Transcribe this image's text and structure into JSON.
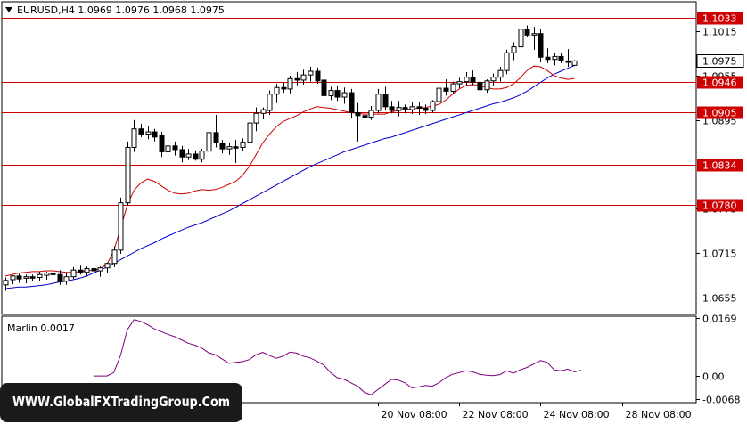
{
  "header": {
    "symbol_line": "EURUSD,H4  1.0969 1.0976 1.0968 1.0975",
    "dropdown_icon": "triangle-down-icon"
  },
  "watermark": "WWW.GlobalFXTradingGroup.Com",
  "colors": {
    "bull": "#ffffff",
    "bear": "#000000",
    "ma_fast": "#cc0000",
    "ma_slow": "#0000cc",
    "level": "#cc0000",
    "oscillator": "#800080",
    "axis": "#000000",
    "price_tag_bg": "#ffffff"
  },
  "chart_data": [
    {
      "type": "candlestick",
      "title": "EURUSD,H4",
      "ohlc_readout": {
        "open": "1.0969",
        "high": "1.0976",
        "low": "1.0968",
        "close": "1.0975"
      },
      "ylim": [
        1.0632,
        1.1055
      ],
      "y_ticks": [
        "1.1015",
        "1.0955",
        "1.0895",
        "1.0775",
        "1.0715",
        "1.0655"
      ],
      "x_ticks": [
        {
          "label": "20 Nov 08:00",
          "index": 55
        },
        {
          "label": "22 Nov 08:00",
          "index": 67
        },
        {
          "label": "24 Nov 08:00",
          "index": 79
        },
        {
          "label": "28 Nov 08:00",
          "index": 91
        }
      ],
      "current_price": "1.0975",
      "levels": [
        {
          "label": "1.1033",
          "value": 1.1033
        },
        {
          "label": "1.0946",
          "value": 1.0946
        },
        {
          "label": "1.0905",
          "value": 1.0905
        },
        {
          "label": "1.0834",
          "value": 1.0834
        },
        {
          "label": "1.0780",
          "value": 1.078
        }
      ],
      "candles": [
        [
          1.0672,
          1.0682,
          1.0664,
          1.0678
        ],
        [
          1.0679,
          1.0685,
          1.0673,
          1.0684
        ],
        [
          1.0684,
          1.0687,
          1.0675,
          1.068
        ],
        [
          1.0681,
          1.0686,
          1.0674,
          1.0683
        ],
        [
          1.0683,
          1.0686,
          1.0677,
          1.0681
        ],
        [
          1.0682,
          1.069,
          1.0677,
          1.0686
        ],
        [
          1.0685,
          1.069,
          1.0679,
          1.0688
        ],
        [
          1.0687,
          1.0692,
          1.0682,
          1.0686
        ],
        [
          1.0686,
          1.0692,
          1.0672,
          1.0676
        ],
        [
          1.0677,
          1.0689,
          1.0672,
          1.0683
        ],
        [
          1.0683,
          1.0696,
          1.068,
          1.0692
        ],
        [
          1.0692,
          1.0698,
          1.0686,
          1.0689
        ],
        [
          1.0689,
          1.0697,
          1.0683,
          1.0694
        ],
        [
          1.0694,
          1.07,
          1.0688,
          1.0691
        ],
        [
          1.0691,
          1.0697,
          1.0683,
          1.0695
        ],
        [
          1.0695,
          1.0702,
          1.0688,
          1.0701
        ],
        [
          1.0701,
          1.0724,
          1.0696,
          1.0719
        ],
        [
          1.0719,
          1.079,
          1.0714,
          1.0783
        ],
        [
          1.0783,
          1.0866,
          1.0779,
          1.0858
        ],
        [
          1.0858,
          1.0895,
          1.0852,
          1.0883
        ],
        [
          1.0883,
          1.089,
          1.0872,
          1.0876
        ],
        [
          1.0876,
          1.0887,
          1.0869,
          1.0879
        ],
        [
          1.0879,
          1.0883,
          1.0866,
          1.0872
        ],
        [
          1.0874,
          1.0879,
          1.0845,
          1.0852
        ],
        [
          1.0852,
          1.0869,
          1.084,
          1.086
        ],
        [
          1.086,
          1.0866,
          1.0847,
          1.0855
        ],
        [
          1.0855,
          1.086,
          1.0838,
          1.0845
        ],
        [
          1.0845,
          1.0856,
          1.0841,
          1.0849
        ],
        [
          1.0849,
          1.0854,
          1.084,
          1.0842
        ],
        [
          1.0842,
          1.0856,
          1.0838,
          1.0853
        ],
        [
          1.0853,
          1.0881,
          1.0849,
          1.0878
        ],
        [
          1.0878,
          1.0902,
          1.0858,
          1.0864
        ],
        [
          1.0864,
          1.0868,
          1.085,
          1.0856
        ],
        [
          1.0856,
          1.0864,
          1.0848,
          1.0859
        ],
        [
          1.0859,
          1.0868,
          1.0837,
          1.0857
        ],
        [
          1.0858,
          1.087,
          1.0853,
          1.0865
        ],
        [
          1.0865,
          1.0896,
          1.0861,
          1.0891
        ],
        [
          1.0891,
          1.0912,
          1.088,
          1.0904
        ],
        [
          1.0904,
          1.0912,
          1.0896,
          1.0909
        ],
        [
          1.0908,
          1.0935,
          1.0902,
          1.093
        ],
        [
          1.093,
          1.0944,
          1.0918,
          1.0939
        ],
        [
          1.0939,
          1.0946,
          1.0932,
          1.0937
        ],
        [
          1.0937,
          1.0955,
          1.0931,
          1.0951
        ],
        [
          1.0951,
          1.096,
          1.0942,
          1.0949
        ],
        [
          1.0949,
          1.0963,
          1.0943,
          1.0956
        ],
        [
          1.0956,
          1.0967,
          1.0947,
          1.0961
        ],
        [
          1.0961,
          1.0966,
          1.0944,
          1.0948
        ],
        [
          1.0949,
          1.0956,
          1.0925,
          1.0928
        ],
        [
          1.0928,
          1.094,
          1.0922,
          1.0935
        ],
        [
          1.0935,
          1.0941,
          1.0921,
          1.0926
        ],
        [
          1.0926,
          1.0939,
          1.0917,
          1.0932
        ],
        [
          1.0932,
          1.0937,
          1.0897,
          1.0905
        ],
        [
          1.0905,
          1.0918,
          1.0866,
          1.0901
        ],
        [
          1.0901,
          1.091,
          1.0892,
          1.0899
        ],
        [
          1.0899,
          1.0914,
          1.0895,
          1.0908
        ],
        [
          1.0908,
          1.0937,
          1.0904,
          1.093
        ],
        [
          1.093,
          1.094,
          1.0908,
          1.0913
        ],
        [
          1.0913,
          1.0921,
          1.0904,
          1.0908
        ],
        [
          1.0908,
          1.0921,
          1.09,
          1.0912
        ],
        [
          1.0912,
          1.0916,
          1.0904,
          1.0909
        ],
        [
          1.0909,
          1.092,
          1.0903,
          1.0913
        ],
        [
          1.0913,
          1.092,
          1.0902,
          1.0911
        ],
        [
          1.0911,
          1.0916,
          1.0903,
          1.0908
        ],
        [
          1.0908,
          1.0922,
          1.0905,
          1.092
        ],
        [
          1.092,
          1.0942,
          1.0915,
          1.0938
        ],
        [
          1.0938,
          1.095,
          1.0928,
          1.0934
        ],
        [
          1.0934,
          1.0947,
          1.093,
          1.0944
        ],
        [
          1.0944,
          1.0952,
          1.0938,
          1.0947
        ],
        [
          1.0947,
          1.096,
          1.0942,
          1.0953
        ],
        [
          1.0953,
          1.0962,
          1.0942,
          1.0946
        ],
        [
          1.0946,
          1.0952,
          1.093,
          1.0936
        ],
        [
          1.0936,
          1.095,
          1.0932,
          1.0948
        ],
        [
          1.0948,
          1.0958,
          1.0942,
          1.0953
        ],
        [
          1.0953,
          1.0967,
          1.0947,
          1.0962
        ],
        [
          1.0962,
          1.099,
          1.0957,
          1.0986
        ],
        [
          1.0986,
          1.1,
          1.0976,
          1.0994
        ],
        [
          1.0994,
          1.1022,
          1.0988,
          1.1018
        ],
        [
          1.1018,
          1.1023,
          1.1007,
          1.101
        ],
        [
          1.101,
          1.1021,
          1.099,
          1.1012
        ],
        [
          1.1012,
          1.1018,
          1.0973,
          1.098
        ],
        [
          1.098,
          1.0992,
          1.0972,
          1.0977
        ],
        [
          1.0977,
          1.0986,
          1.0969,
          1.0981
        ],
        [
          1.0981,
          1.0986,
          1.0972,
          1.0975
        ],
        [
          1.0975,
          1.0991,
          1.0967,
          1.0973
        ],
        [
          1.0969,
          1.0976,
          1.0968,
          1.0975
        ]
      ],
      "ma_fast": [
        1.0684,
        1.0686,
        1.0688,
        1.0689,
        1.069,
        1.069,
        1.0691,
        1.0691,
        1.069,
        1.0689,
        1.0689,
        1.069,
        1.0691,
        1.0692,
        1.0694,
        1.07,
        1.0718,
        1.0748,
        1.078,
        1.08,
        1.081,
        1.0815,
        1.0812,
        1.0806,
        1.08,
        1.0796,
        1.0795,
        1.0796,
        1.0799,
        1.0801,
        1.08,
        1.0801,
        1.0804,
        1.0808,
        1.0812,
        1.082,
        1.0832,
        1.0848,
        1.0864,
        1.0876,
        1.0886,
        1.0893,
        1.0897,
        1.0901,
        1.0906,
        1.091,
        1.0913,
        1.0912,
        1.0911,
        1.0909,
        1.0907,
        1.0905,
        1.0904,
        1.0903,
        1.0903,
        1.0903,
        1.0903,
        1.0906,
        1.0908,
        1.0909,
        1.091,
        1.0911,
        1.0912,
        1.0914,
        1.0916,
        1.0922,
        1.093,
        1.0937,
        1.0942,
        1.0943,
        1.0942,
        1.0939,
        1.0937,
        1.0937,
        1.0939,
        1.0944,
        1.0952,
        1.0962,
        1.0968,
        1.0967,
        1.0962,
        1.0955,
        1.0952,
        1.095,
        1.0951
      ],
      "ma_slow": [
        1.0667,
        1.0668,
        1.0669,
        1.0669,
        1.067,
        1.0671,
        1.0672,
        1.0674,
        1.0676,
        1.0677,
        1.0679,
        1.0681,
        1.0684,
        1.0688,
        1.0692,
        1.0696,
        1.0701,
        1.0706,
        1.0711,
        1.0716,
        1.0721,
        1.0725,
        1.0729,
        1.0734,
        1.0738,
        1.0742,
        1.0746,
        1.075,
        1.0753,
        1.0756,
        1.076,
        1.0764,
        1.0768,
        1.0772,
        1.0777,
        1.0782,
        1.0787,
        1.0792,
        1.0797,
        1.0802,
        1.0807,
        1.0812,
        1.0817,
        1.0822,
        1.0827,
        1.0832,
        1.0836,
        1.084,
        1.0844,
        1.0848,
        1.0852,
        1.0855,
        1.0858,
        1.0861,
        1.0864,
        1.0867,
        1.087,
        1.0872,
        1.0875,
        1.0878,
        1.0881,
        1.0884,
        1.0887,
        1.089,
        1.0893,
        1.0896,
        1.0899,
        1.0902,
        1.0905,
        1.0908,
        1.0911,
        1.0914,
        1.0917,
        1.0919,
        1.0922,
        1.0925,
        1.0929,
        1.0934,
        1.094,
        1.0946,
        1.0952,
        1.0957,
        1.0961,
        1.0965,
        1.0969
      ]
    },
    {
      "type": "line",
      "title": "Marlin 0.0017",
      "ylim": [
        -0.0078,
        0.0175
      ],
      "y_ticks": [
        {
          "label": "0.0169",
          "value": 0.0169
        },
        {
          "label": "0.00",
          "value": 0.0
        },
        {
          "label": "-0.0068",
          "value": -0.0068
        }
      ],
      "series": [
        {
          "values": [
            0.0,
            0.0,
            0.0,
            0.0,
            0.0,
            0.0,
            0.0,
            0.0,
            0.0,
            0.0,
            0.0,
            0.0,
            0.0,
            0.0,
            0.0,
            0.0,
            0.001,
            0.006,
            0.0135,
            0.0165,
            0.016,
            0.015,
            0.0138,
            0.013,
            0.0122,
            0.0115,
            0.0106,
            0.0096,
            0.009,
            0.0082,
            0.0068,
            0.0062,
            0.005,
            0.0037,
            0.004,
            0.0042,
            0.0048,
            0.0062,
            0.0069,
            0.006,
            0.0052,
            0.0058,
            0.007,
            0.0067,
            0.0058,
            0.0053,
            0.0043,
            0.0032,
            0.001,
            -0.0005,
            -0.001,
            -0.002,
            -0.003,
            -0.0048,
            -0.0055,
            -0.004,
            -0.0025,
            -0.001,
            -0.0012,
            -0.002,
            -0.0035,
            -0.0032,
            -0.0028,
            -0.003,
            -0.002,
            -0.0005,
            0.0005,
            0.001,
            0.0015,
            0.0012,
            0.0005,
            0.0002,
            0.0001,
            0.0004,
            0.0015,
            0.0008,
            0.0018,
            0.0025,
            0.0035,
            0.0045,
            0.004,
            0.0018,
            0.0015,
            0.002,
            0.0012,
            0.0017
          ]
        }
      ]
    }
  ]
}
